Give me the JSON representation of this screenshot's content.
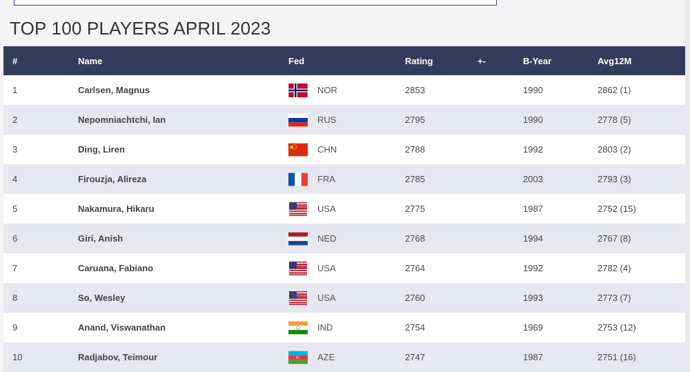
{
  "page": {
    "title": "TOP 100 PLAYERS APRIL 2023"
  },
  "table": {
    "headers": {
      "rank": "#",
      "name": "Name",
      "fed": "Fed",
      "rating": "Rating",
      "diff": "+-",
      "byear": "B-Year",
      "avg": "Avg12M"
    },
    "rows": [
      {
        "rank": "1",
        "name": "Carlsen, Magnus",
        "flag_icon": "norway-flag-icon",
        "fed": "NOR",
        "rating": "2853",
        "diff": "",
        "byear": "1990",
        "avg": "2862 (1)"
      },
      {
        "rank": "2",
        "name": "Nepomniachtchi, Ian",
        "flag_icon": "russia-flag-icon",
        "fed": "RUS",
        "rating": "2795",
        "diff": "",
        "byear": "1990",
        "avg": "2778 (5)"
      },
      {
        "rank": "3",
        "name": "Ding, Liren",
        "flag_icon": "china-flag-icon",
        "fed": "CHN",
        "rating": "2788",
        "diff": "",
        "byear": "1992",
        "avg": "2803 (2)"
      },
      {
        "rank": "4",
        "name": "Firouzja, Alireza",
        "flag_icon": "france-flag-icon",
        "fed": "FRA",
        "rating": "2785",
        "diff": "",
        "byear": "2003",
        "avg": "2793 (3)"
      },
      {
        "rank": "5",
        "name": "Nakamura, Hikaru",
        "flag_icon": "usa-flag-icon",
        "fed": "USA",
        "rating": "2775",
        "diff": "",
        "byear": "1987",
        "avg": "2752 (15)"
      },
      {
        "rank": "6",
        "name": "Giri, Anish",
        "flag_icon": "netherlands-flag-icon",
        "fed": "NED",
        "rating": "2768",
        "diff": "",
        "byear": "1994",
        "avg": "2767 (8)"
      },
      {
        "rank": "7",
        "name": "Caruana, Fabiano",
        "flag_icon": "usa-flag-icon",
        "fed": "USA",
        "rating": "2764",
        "diff": "",
        "byear": "1992",
        "avg": "2782 (4)"
      },
      {
        "rank": "8",
        "name": "So, Wesley",
        "flag_icon": "usa-flag-icon",
        "fed": "USA",
        "rating": "2760",
        "diff": "",
        "byear": "1993",
        "avg": "2773 (7)"
      },
      {
        "rank": "9",
        "name": "Anand, Viswanathan",
        "flag_icon": "india-flag-icon",
        "fed": "IND",
        "rating": "2754",
        "diff": "",
        "byear": "1969",
        "avg": "2753 (12)"
      },
      {
        "rank": "10",
        "name": "Radjabov, Teimour",
        "flag_icon": "azerbaijan-flag-icon",
        "fed": "AZE",
        "rating": "2747",
        "diff": "",
        "byear": "1987",
        "avg": "2751 (16)"
      }
    ]
  },
  "colors": {
    "header_bg": "#333c5a",
    "row_alt_bg": "#e7e7f0",
    "top_box_border": "#3d3a8f"
  }
}
